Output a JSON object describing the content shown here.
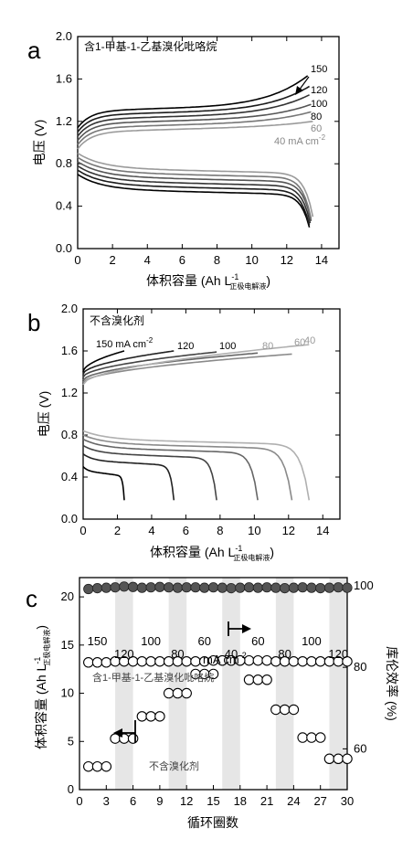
{
  "chart_data": [
    {
      "type": "line",
      "panel_label": "a",
      "legend_title": "含1-甲基-1-乙基溴化吡咯烷",
      "xlabel": "体积容量 (Ah L",
      "xlabel_sup": "-1",
      "xlabel_sub": "正极电解液",
      "xlabel_close": ")",
      "ylabel": "电压 (V)",
      "xlim": [
        0,
        15
      ],
      "ylim": [
        0,
        2.0
      ],
      "xticks": [
        0,
        2,
        4,
        6,
        8,
        10,
        12,
        14
      ],
      "yticks": [
        "0.0",
        "0.4",
        "0.8",
        "1.2",
        "1.6",
        "2.0"
      ],
      "series": [
        {
          "name": "150",
          "color": "#000000",
          "charge": {
            "start": 1.14,
            "plateau": 1.3,
            "end": 1.57,
            "xmax": 13.2
          },
          "discharge": {
            "start": 0.7,
            "plateau": 0.56,
            "end": 0.2,
            "xmax": 13.3
          }
        },
        {
          "name": "120",
          "color": "#1a1a1a",
          "charge": {
            "start": 1.1,
            "plateau": 1.26,
            "end": 1.47,
            "xmax": 13.3
          },
          "discharge": {
            "start": 0.74,
            "plateau": 0.6,
            "end": 0.22,
            "xmax": 13.3
          }
        },
        {
          "name": "100",
          "color": "#333333",
          "charge": {
            "start": 1.06,
            "plateau": 1.22,
            "end": 1.39,
            "xmax": 13.3
          },
          "discharge": {
            "start": 0.78,
            "plateau": 0.64,
            "end": 0.24,
            "xmax": 13.35
          }
        },
        {
          "name": "80",
          "color": "#555555",
          "charge": {
            "start": 1.02,
            "plateau": 1.18,
            "end": 1.3,
            "xmax": 13.4
          },
          "discharge": {
            "start": 0.82,
            "plateau": 0.68,
            "end": 0.26,
            "xmax": 13.4
          }
        },
        {
          "name": "60",
          "color": "#777777",
          "charge": {
            "start": 0.98,
            "plateau": 1.14,
            "end": 1.23,
            "xmax": 13.4
          },
          "discharge": {
            "start": 0.86,
            "plateau": 0.72,
            "end": 0.28,
            "xmax": 13.4
          }
        },
        {
          "name": "40 mA cm",
          "name_sup": "-2",
          "color": "#9a9a9a",
          "charge": {
            "start": 0.94,
            "plateau": 1.1,
            "end": 1.14,
            "xmax": 13.5
          },
          "discharge": {
            "start": 0.9,
            "plateau": 0.76,
            "end": 0.3,
            "xmax": 13.5
          }
        }
      ]
    },
    {
      "type": "line",
      "panel_label": "b",
      "legend_title": "不含溴化剂",
      "xlabel": "体积容量 (Ah L",
      "xlabel_sup": "-1",
      "xlabel_sub": "正极电解液",
      "xlabel_close": ")",
      "ylabel": "电压 (V)",
      "xlim": [
        0,
        15
      ],
      "ylim": [
        0,
        2.0
      ],
      "xticks": [
        0,
        2,
        4,
        6,
        8,
        10,
        12,
        14
      ],
      "yticks": [
        "0.0",
        "0.4",
        "0.8",
        "1.2",
        "1.6",
        "2.0"
      ],
      "series": [
        {
          "name": "150 mA cm",
          "name_sup": "-2",
          "color": "#000000",
          "charge": {
            "start": 1.4,
            "end": 1.6,
            "xmax": 2.4
          },
          "discharge": {
            "start": 0.5,
            "plateau": 0.46,
            "end": 0.18,
            "xmax": 2.4
          }
        },
        {
          "name": "120",
          "color": "#222222",
          "charge": {
            "start": 1.38,
            "end": 1.6,
            "xmax": 5.3
          },
          "discharge": {
            "start": 0.62,
            "plateau": 0.56,
            "end": 0.18,
            "xmax": 5.3
          }
        },
        {
          "name": "100",
          "color": "#444444",
          "charge": {
            "start": 1.35,
            "end": 1.59,
            "xmax": 7.8
          },
          "discharge": {
            "start": 0.7,
            "plateau": 0.63,
            "end": 0.18,
            "xmax": 7.8
          }
        },
        {
          "name": "80",
          "color": "#666666",
          "charge": {
            "start": 1.32,
            "end": 1.58,
            "xmax": 10.2
          },
          "discharge": {
            "start": 0.76,
            "plateau": 0.68,
            "end": 0.18,
            "xmax": 10.2
          }
        },
        {
          "name": "60",
          "color": "#8a8a8a",
          "charge": {
            "start": 1.3,
            "end": 1.57,
            "xmax": 12.2
          },
          "discharge": {
            "start": 0.8,
            "plateau": 0.72,
            "end": 0.18,
            "xmax": 12.2
          }
        },
        {
          "name": "40",
          "color": "#b0b0b0",
          "charge": {
            "start": 1.28,
            "end": 1.66,
            "xmax": 13.2
          },
          "discharge": {
            "start": 0.84,
            "plateau": 0.76,
            "end": 0.18,
            "xmax": 13.2
          }
        }
      ]
    },
    {
      "type": "scatter",
      "panel_label": "c",
      "xlabel": "循环圈数",
      "ylabel_left": "体积容量 (Ah L",
      "ylabel_left_sup": "-1",
      "ylabel_left_sub": "正极电解液",
      "ylabel_left_close": ")",
      "ylabel_right": "库伦效率 (%)",
      "xlim": [
        0,
        30
      ],
      "ylim_left": [
        0,
        22
      ],
      "ylim_right": [
        50,
        102
      ],
      "xticks": [
        0,
        3,
        6,
        9,
        12,
        15,
        18,
        21,
        24,
        27,
        30
      ],
      "yticks_left": [
        0,
        5,
        10,
        15,
        20
      ],
      "yticks_right": [
        60,
        80,
        100
      ],
      "current_density_labels": [
        "150",
        "120",
        "100",
        "80",
        "60",
        "40",
        "60",
        "80",
        "100",
        "120"
      ],
      "current_density_unit": "mA cm",
      "current_density_unit_sup": "-2",
      "series_with_additive_label": "含1-甲基-1-乙基溴化吡咯烷",
      "series_without_additive_label": "不含溴化剂",
      "shaded_ranges": [
        [
          4,
          6
        ],
        [
          10,
          12
        ],
        [
          16,
          18
        ],
        [
          22,
          24
        ],
        [
          28,
          30
        ]
      ],
      "series": [
        {
          "name": "含1-甲基-1-乙基溴化吡咯烷",
          "marker": "open-circle",
          "axis": "left",
          "x": [
            1,
            2,
            3,
            4,
            5,
            6,
            7,
            8,
            9,
            10,
            11,
            12,
            13,
            14,
            15,
            16,
            17,
            18,
            19,
            20,
            21,
            22,
            23,
            24,
            25,
            26,
            27,
            28,
            29,
            30
          ],
          "y": [
            13.2,
            13.2,
            13.2,
            13.3,
            13.3,
            13.3,
            13.3,
            13.3,
            13.3,
            13.3,
            13.3,
            13.3,
            13.3,
            13.3,
            13.4,
            13.4,
            13.4,
            13.4,
            13.4,
            13.4,
            13.4,
            13.3,
            13.3,
            13.3,
            13.3,
            13.3,
            13.3,
            13.3,
            13.3,
            13.3
          ]
        },
        {
          "name": "不含溴化剂",
          "marker": "open-circle",
          "axis": "left",
          "x": [
            1,
            2,
            3,
            4,
            5,
            6,
            7,
            8,
            9,
            10,
            11,
            12,
            13,
            14,
            15,
            16,
            17,
            18,
            19,
            20,
            21,
            22,
            23,
            24,
            25,
            26,
            27,
            28,
            29,
            30
          ],
          "y": [
            2.4,
            2.4,
            2.4,
            5.3,
            5.3,
            5.3,
            7.6,
            7.6,
            7.6,
            10.0,
            10.0,
            10.0,
            12.0,
            12.0,
            12.0,
            13.4,
            13.4,
            13.4,
            11.4,
            11.4,
            11.4,
            8.3,
            8.3,
            8.3,
            5.4,
            5.4,
            5.4,
            3.2,
            3.2,
            3.2
          ]
        },
        {
          "name": "库伦效率",
          "marker": "filled-circle",
          "axis": "right",
          "x": [
            1,
            2,
            3,
            4,
            5,
            6,
            7,
            8,
            9,
            10,
            11,
            12,
            13,
            14,
            15,
            16,
            17,
            18,
            19,
            20,
            21,
            22,
            23,
            24,
            25,
            26,
            27,
            28,
            29,
            30
          ],
          "y": [
            99.2,
            99.4,
            99.5,
            99.6,
            99.8,
            99.7,
            99.5,
            99.6,
            99.7,
            99.6,
            99.5,
            99.6,
            99.6,
            99.5,
            99.6,
            99.5,
            99.4,
            99.5,
            99.6,
            99.5,
            99.6,
            99.5,
            99.4,
            99.5,
            99.6,
            99.5,
            99.4,
            99.5,
            99.6,
            99.5
          ]
        }
      ]
    }
  ]
}
